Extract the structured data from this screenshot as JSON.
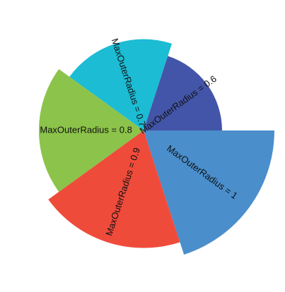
{
  "chart_data": {
    "type": "pie",
    "title": "",
    "start_angle_deg": 0,
    "direction": "clockwise",
    "slices": [
      {
        "label": "MaxOuterRadius = 1",
        "value": 1,
        "radius_ratio": 1.0,
        "color": "#4A8ECC"
      },
      {
        "label": "MaxOuterRadius = 0.9",
        "value": 1,
        "radius_ratio": 0.9,
        "color": "#EF4B3B"
      },
      {
        "label": "MaxOuterRadius = 0.8",
        "value": 1,
        "radius_ratio": 0.8,
        "color": "#8CC34A"
      },
      {
        "label": "MaxOuterRadius = 0.7",
        "value": 1,
        "radius_ratio": 0.7,
        "color": "#1BBCD4"
      },
      {
        "label": "MaxOuterRadius = 0.6",
        "value": 1,
        "radius_ratio": 0.6,
        "color": "#4355A8"
      }
    ]
  }
}
